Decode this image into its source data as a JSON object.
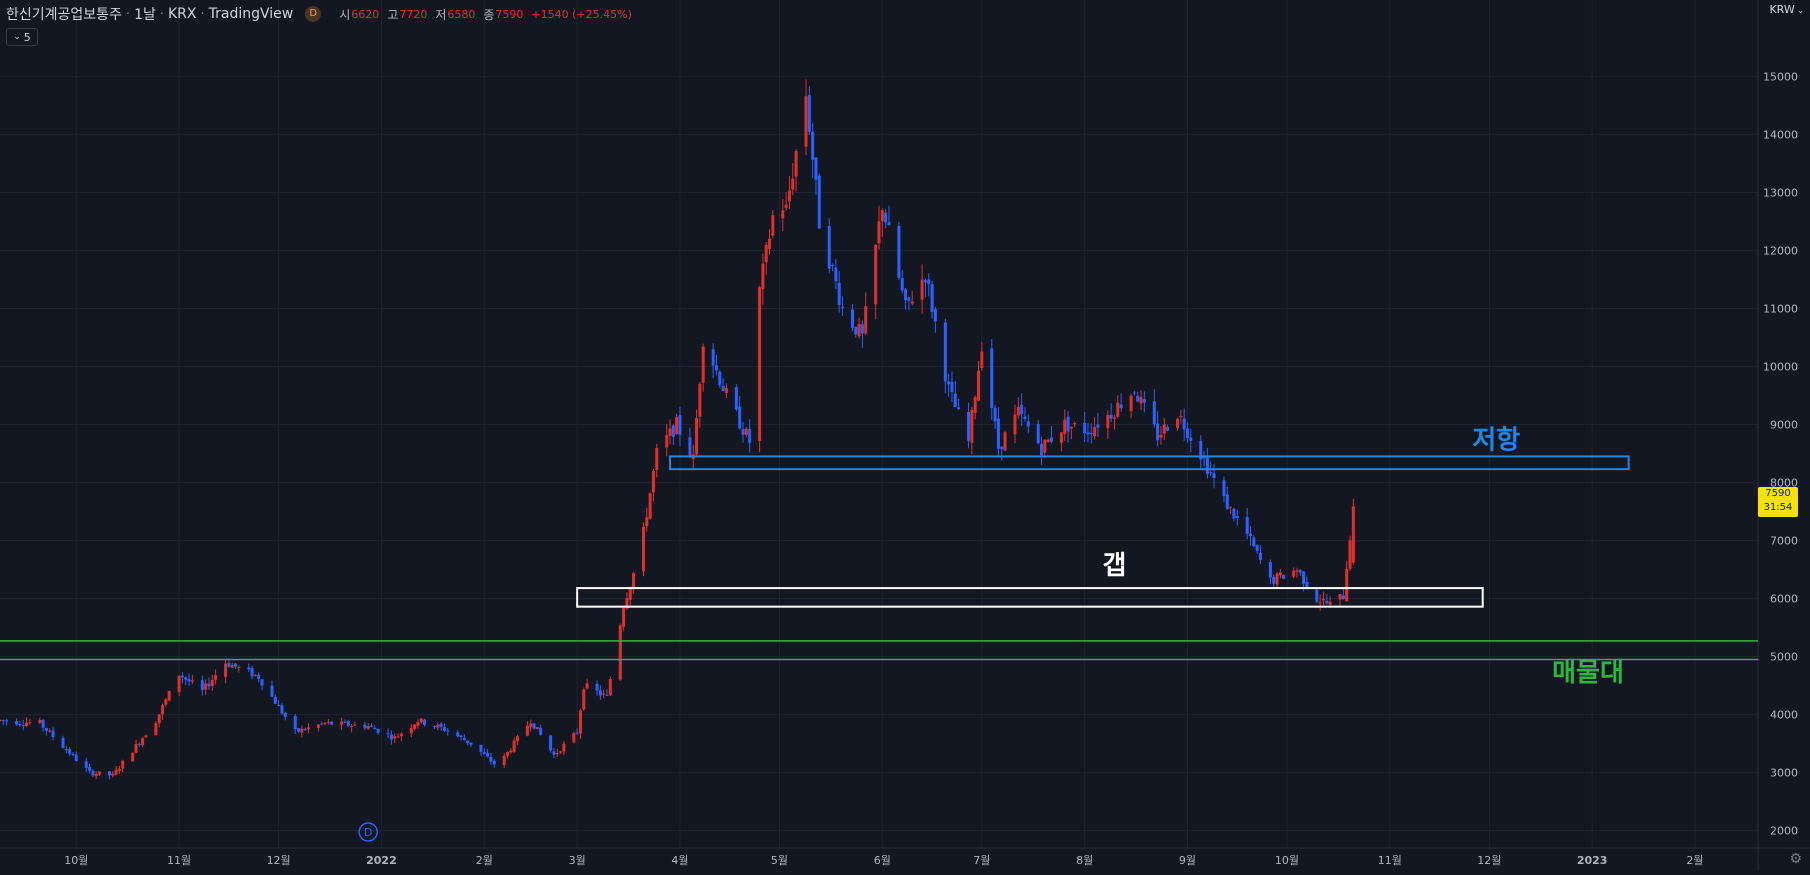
{
  "header": {
    "symbol": "한신기계공업보통주",
    "interval": "1날",
    "exchange": "KRX",
    "source": "TradingView",
    "badge": "D",
    "ohlc": [
      {
        "label": "시",
        "value": "6620"
      },
      {
        "label": "고",
        "value": "7720"
      },
      {
        "label": "저",
        "value": "6580"
      },
      {
        "label": "종",
        "value": "7590"
      }
    ],
    "change": "+1540 (+25.45%)",
    "collapse_label": "5",
    "currency": "KRW"
  },
  "price_tag": {
    "price": "7590",
    "countdown": "31:54",
    "color": "#f5e20b"
  },
  "colors": {
    "up": "#e0302a",
    "down": "#2962ff",
    "bg": "#131722",
    "grid": "#1f2330",
    "resistance": "#1e88e5",
    "gap": "#ffffff",
    "supply": "#2db83d"
  },
  "chart_data": {
    "type": "candlestick",
    "ylim": [
      1700,
      15800
    ],
    "y_ticks": [
      2000,
      3000,
      4000,
      5000,
      6000,
      7000,
      8000,
      9000,
      10000,
      11000,
      12000,
      13000,
      14000,
      15000
    ],
    "x_range": [
      "2021-09-08",
      "2023-02-20"
    ],
    "x_ticks": [
      {
        "date": "2021-10-01",
        "label": "10월"
      },
      {
        "date": "2021-11-01",
        "label": "11월"
      },
      {
        "date": "2021-12-01",
        "label": "12월"
      },
      {
        "date": "2022-01-01",
        "label": "2022"
      },
      {
        "date": "2022-02-01",
        "label": "2월"
      },
      {
        "date": "2022-03-01",
        "label": "3월"
      },
      {
        "date": "2022-04-01",
        "label": "4월"
      },
      {
        "date": "2022-05-01",
        "label": "5월"
      },
      {
        "date": "2022-06-01",
        "label": "6월"
      },
      {
        "date": "2022-07-01",
        "label": "7월"
      },
      {
        "date": "2022-08-01",
        "label": "8월"
      },
      {
        "date": "2022-09-01",
        "label": "9월"
      },
      {
        "date": "2022-10-01",
        "label": "10월"
      },
      {
        "date": "2022-11-01",
        "label": "11월"
      },
      {
        "date": "2022-12-01",
        "label": "12월"
      },
      {
        "date": "2023-01-01",
        "label": "2023"
      },
      {
        "date": "2023-02-01",
        "label": "2월"
      }
    ],
    "dividend_marker": {
      "date": "2021-12-28",
      "label": "D"
    },
    "price_path": [
      [
        "2021-09-08",
        3900
      ],
      [
        "2021-09-20",
        3850
      ],
      [
        "2021-10-05",
        3000
      ],
      [
        "2021-10-12",
        2950
      ],
      [
        "2021-10-25",
        3900
      ],
      [
        "2021-11-01",
        4700
      ],
      [
        "2021-11-08",
        4400
      ],
      [
        "2021-11-15",
        4900
      ],
      [
        "2021-11-25",
        4650
      ],
      [
        "2021-12-06",
        3700
      ],
      [
        "2021-12-15",
        3850
      ],
      [
        "2021-12-28",
        3800
      ],
      [
        "2022-01-05",
        3600
      ],
      [
        "2022-01-12",
        3900
      ],
      [
        "2022-01-20",
        3750
      ],
      [
        "2022-01-28",
        3500
      ],
      [
        "2022-02-05",
        3100
      ],
      [
        "2022-02-15",
        3900
      ],
      [
        "2022-02-22",
        3300
      ],
      [
        "2022-03-01",
        3700
      ],
      [
        "2022-03-03",
        4500
      ],
      [
        "2022-03-10",
        4300
      ],
      [
        "2022-03-15",
        5900
      ],
      [
        "2022-03-20",
        6800
      ],
      [
        "2022-03-25",
        8500
      ],
      [
        "2022-03-31",
        9000
      ],
      [
        "2022-04-05",
        8400
      ],
      [
        "2022-04-08",
        10500
      ],
      [
        "2022-04-15",
        9500
      ],
      [
        "2022-04-22",
        8700
      ],
      [
        "2022-04-25",
        11300
      ],
      [
        "2022-04-30",
        12900
      ],
      [
        "2022-05-03",
        12700
      ],
      [
        "2022-05-09",
        14700
      ],
      [
        "2022-05-13",
        12500
      ],
      [
        "2022-05-20",
        11000
      ],
      [
        "2022-05-26",
        10500
      ],
      [
        "2022-06-01",
        12800
      ],
      [
        "2022-06-08",
        11000
      ],
      [
        "2022-06-14",
        11600
      ],
      [
        "2022-06-21",
        9600
      ],
      [
        "2022-06-27",
        8700
      ],
      [
        "2022-07-01",
        10400
      ],
      [
        "2022-07-06",
        8600
      ],
      [
        "2022-07-12",
        9200
      ],
      [
        "2022-07-19",
        8600
      ],
      [
        "2022-07-26",
        9000
      ],
      [
        "2022-08-02",
        8900
      ],
      [
        "2022-08-09",
        9200
      ],
      [
        "2022-08-16",
        9600
      ],
      [
        "2022-08-23",
        8800
      ],
      [
        "2022-08-29",
        9200
      ],
      [
        "2022-09-05",
        8500
      ],
      [
        "2022-09-12",
        7700
      ],
      [
        "2022-09-19",
        7100
      ],
      [
        "2022-09-26",
        6300
      ],
      [
        "2022-10-04",
        6500
      ],
      [
        "2022-10-10",
        6000
      ],
      [
        "2022-10-14",
        5900
      ],
      [
        "2022-10-18",
        6050
      ],
      [
        "2022-10-21",
        7590
      ]
    ],
    "last_candle": {
      "date": "2022-10-21",
      "open": 6620,
      "high": 7720,
      "low": 6580,
      "close": 7590
    },
    "annotations": [
      {
        "kind": "box",
        "name": "resistance",
        "label": "저항",
        "x_start": "2022-03-29",
        "x_end": "2023-01-12",
        "y_low": 8230,
        "y_high": 8450,
        "color": "#1e88e5"
      },
      {
        "kind": "box",
        "name": "gap",
        "label": "갭",
        "x_start": "2022-03-01",
        "x_end": "2022-11-29",
        "y_low": 5860,
        "y_high": 6180,
        "color": "#ffffff"
      },
      {
        "kind": "hband",
        "name": "supply",
        "label": "매물대",
        "y_low": 4950,
        "y_high": 5270,
        "color": "#2db83d"
      }
    ]
  },
  "footer": {
    "settings_icon": "gear-icon"
  }
}
